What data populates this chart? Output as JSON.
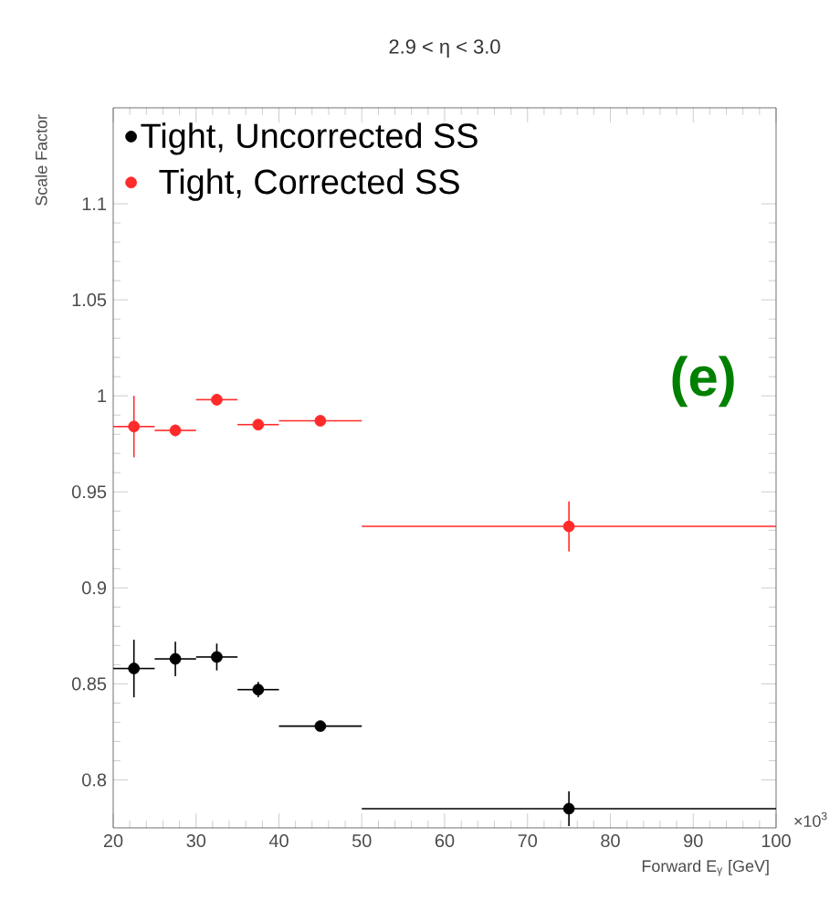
{
  "chart_data": {
    "type": "scatter",
    "title": "2.9 < η < 3.0",
    "xlabel": "Forward E$_{γ}$ [GeV]",
    "ylabel": "Scale Factor",
    "x": [
      22.5,
      27.5,
      32.5,
      37.5,
      45,
      75
    ],
    "series": [
      {
        "name": "Tight, Uncorrected SS",
        "color": "#000000",
        "values": [
          0.858,
          0.863,
          0.864,
          0.847,
          0.828,
          0.785
        ],
        "errors": [
          0.015,
          0.009,
          0.007,
          0.004,
          0.002,
          0.009
        ],
        "xerrors": [
          2.5,
          2.5,
          2.5,
          2.5,
          5,
          25
        ]
      },
      {
        "name": "Tight, Corrected SS",
        "color": "#ff2a2a",
        "values": [
          0.984,
          0.982,
          0.998,
          0.985,
          0.987,
          0.932
        ],
        "errors": [
          0.016,
          0.003,
          0.003,
          0.002,
          0.002,
          0.013
        ],
        "xerrors": [
          2.5,
          2.5,
          2.5,
          2.5,
          5,
          25
        ]
      }
    ],
    "xlim": [
      20,
      100
    ],
    "ylim": [
      0.775,
      1.15
    ],
    "xticks": [
      20,
      30,
      40,
      50,
      60,
      70,
      80,
      90,
      100
    ],
    "yticks": [
      0.8,
      0.85,
      0.9,
      0.95,
      1,
      1.05,
      1.1
    ],
    "marker": "circle",
    "legend": "top left",
    "grid": false,
    "annotations": [
      "(e)",
      "×10$^{3}$"
    ]
  }
}
